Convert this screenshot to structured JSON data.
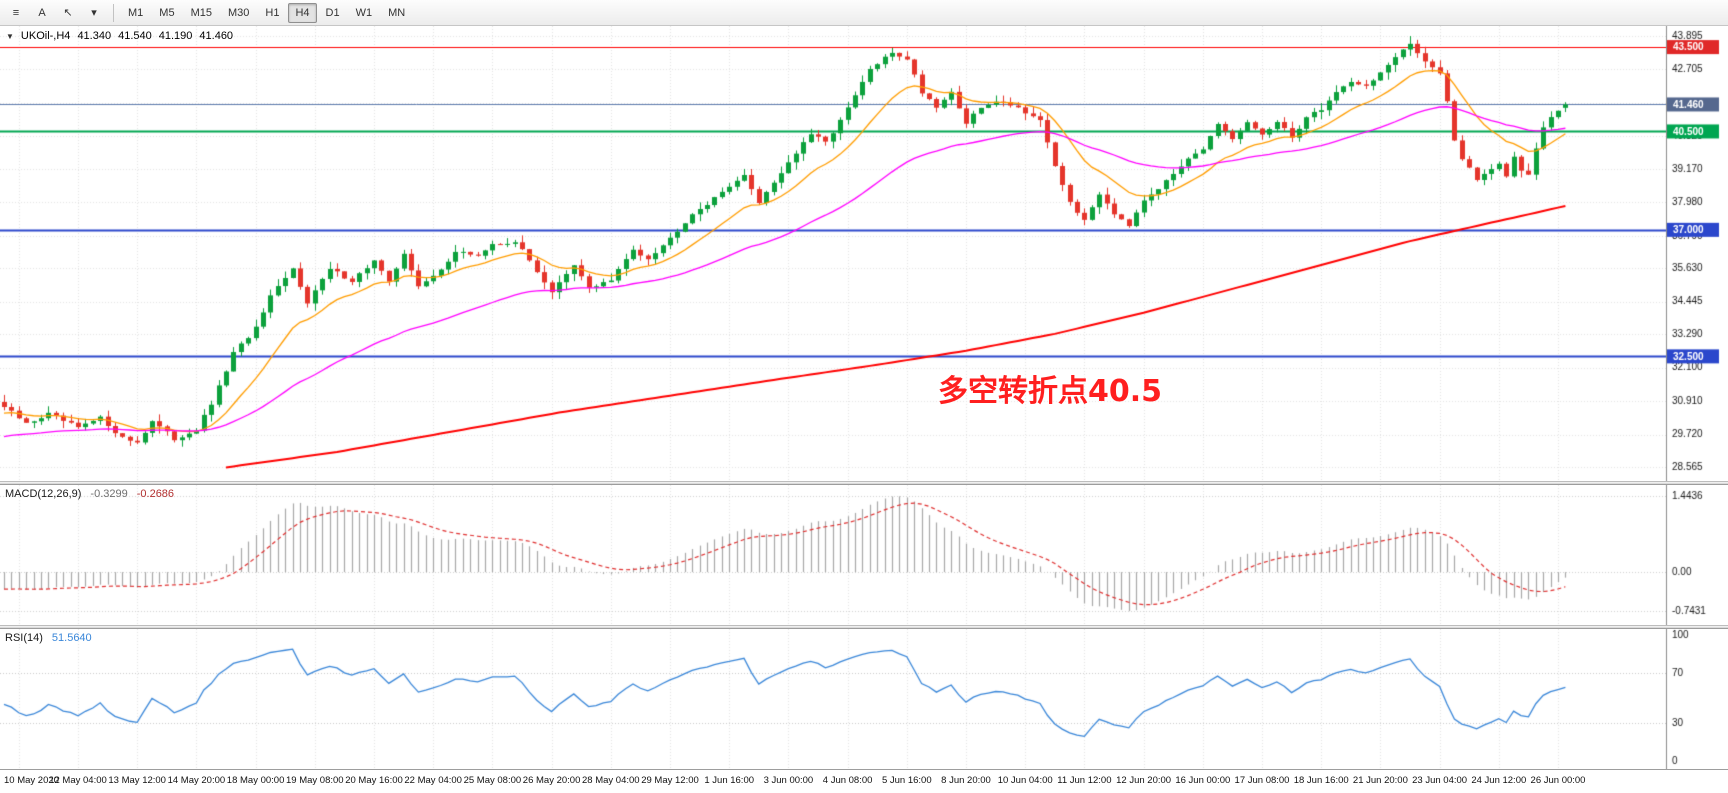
{
  "toolbar": {
    "tools": [
      {
        "name": "charts-menu",
        "glyph": "≡"
      },
      {
        "name": "text-label",
        "glyph": "A"
      },
      {
        "name": "cursor",
        "glyph": "↖"
      },
      {
        "name": "objects-dropdown",
        "glyph": "▾"
      }
    ],
    "timeframes": [
      "M1",
      "M5",
      "M15",
      "M30",
      "H1",
      "H4",
      "D1",
      "W1",
      "MN"
    ],
    "active_timeframe": "H4"
  },
  "symbol_info": {
    "collapse_icon": "▼",
    "symbol": "UKOil-,H4",
    "open": "41.340",
    "high": "41.540",
    "low": "41.190",
    "close": "41.460"
  },
  "annotation": {
    "text": "多空转折点40.5",
    "color": "#ff1f1f"
  },
  "indicators": {
    "macd": {
      "label": "MACD(12,26,9)",
      "value_main": "-0.3299",
      "value_signal": "-0.2686",
      "scale": [
        {
          "v": 1.4436,
          "label": "1.4436"
        },
        {
          "v": 0,
          "label": "0.00"
        },
        {
          "v": -0.7431,
          "label": "-0.7431"
        }
      ]
    },
    "rsi": {
      "label": "RSI(14)",
      "value": "51.5640",
      "scale": [
        {
          "v": 100,
          "label": "100"
        },
        {
          "v": 70,
          "label": "70"
        },
        {
          "v": 30,
          "label": "30"
        },
        {
          "v": 0,
          "label": "0"
        }
      ],
      "levels": [
        70,
        30
      ]
    }
  },
  "chart_data": {
    "type": "candlestick",
    "symbol": "UKOil-",
    "timeframe": "H4",
    "last_ohlc": {
      "open": 41.34,
      "high": 41.54,
      "low": 41.19,
      "close": 41.46
    },
    "price_axis": {
      "min": 28.565,
      "max": 43.895,
      "ticks": [
        43.895,
        42.705,
        41.515,
        40.325,
        39.17,
        37.98,
        36.79,
        35.63,
        34.445,
        33.29,
        32.1,
        30.91,
        29.72,
        28.565
      ]
    },
    "hlines": [
      {
        "price": 43.5,
        "label": "43.500",
        "color": "#ff0000",
        "badge": "#e02828",
        "width": 1.2
      },
      {
        "price": 37.0,
        "label": "37.000",
        "color": "#2b47cc",
        "badge": "#2b47cc",
        "width": 2
      },
      {
        "price": 32.5,
        "label": "32.500",
        "color": "#2b47cc",
        "badge": "#2b47cc",
        "width": 2
      },
      {
        "price": 40.5,
        "label": "40.500",
        "color": "#00a651",
        "badge": "#00a651",
        "width": 2
      },
      {
        "price": 41.46,
        "label": "41.460",
        "color": "#5b79ad",
        "badge": "#55688e",
        "width": 1
      }
    ],
    "time_labels": [
      "10 May 2020",
      "12 May 04:00",
      "13 May 12:00",
      "14 May 20:00",
      "18 May 00:00",
      "19 May 08:00",
      "20 May 16:00",
      "22 May 04:00",
      "25 May 08:00",
      "26 May 20:00",
      "28 May 04:00",
      "29 May 12:00",
      "1 Jun 16:00",
      "3 Jun 00:00",
      "4 Jun 08:00",
      "5 Jun 16:00",
      "8 Jun 20:00",
      "10 Jun 04:00",
      "11 Jun 12:00",
      "12 Jun 20:00",
      "16 Jun 00:00",
      "17 Jun 08:00",
      "18 Jun 16:00",
      "21 Jun 20:00",
      "23 Jun 04:00",
      "24 Jun 12:00",
      "26 Jun 00:00"
    ],
    "n_candles": 212,
    "candle_spacing": 7.4,
    "first_label_index": 2,
    "label_step": 8,
    "close_waypoints": [
      [
        0,
        30.7
      ],
      [
        3,
        30.1
      ],
      [
        6,
        30.45
      ],
      [
        10,
        29.95
      ],
      [
        13,
        30.3
      ],
      [
        16,
        29.6
      ],
      [
        18,
        29.45
      ],
      [
        20,
        30.2
      ],
      [
        23,
        29.55
      ],
      [
        26,
        29.9
      ],
      [
        28,
        30.8
      ],
      [
        31,
        32.6
      ],
      [
        34,
        33.5
      ],
      [
        36,
        34.6
      ],
      [
        39,
        35.6
      ],
      [
        41,
        34.45
      ],
      [
        44,
        35.6
      ],
      [
        47,
        35.2
      ],
      [
        50,
        35.9
      ],
      [
        52,
        35.1
      ],
      [
        54,
        36.2
      ],
      [
        56,
        34.95
      ],
      [
        58,
        35.35
      ],
      [
        61,
        36.2
      ],
      [
        64,
        36.1
      ],
      [
        66,
        36.45
      ],
      [
        69,
        36.6
      ],
      [
        71,
        35.9
      ],
      [
        74,
        34.8
      ],
      [
        77,
        35.7
      ],
      [
        79,
        34.95
      ],
      [
        82,
        35.2
      ],
      [
        85,
        36.3
      ],
      [
        87,
        36.0
      ],
      [
        90,
        36.7
      ],
      [
        93,
        37.6
      ],
      [
        96,
        38.1
      ],
      [
        98,
        38.6
      ],
      [
        100,
        38.9
      ],
      [
        102,
        38.0
      ],
      [
        106,
        39.4
      ],
      [
        109,
        40.4
      ],
      [
        111,
        40.1
      ],
      [
        114,
        41.3
      ],
      [
        117,
        42.7
      ],
      [
        120,
        43.3
      ],
      [
        122,
        43.1
      ],
      [
        124,
        41.9
      ],
      [
        126,
        41.4
      ],
      [
        128,
        41.9
      ],
      [
        130,
        40.8
      ],
      [
        132,
        41.35
      ],
      [
        135,
        41.6
      ],
      [
        138,
        41.2
      ],
      [
        140,
        40.9
      ],
      [
        142,
        39.2
      ],
      [
        144,
        38.0
      ],
      [
        146,
        37.3
      ],
      [
        148,
        38.3
      ],
      [
        150,
        37.6
      ],
      [
        152,
        37.2
      ],
      [
        154,
        38.1
      ],
      [
        157,
        38.7
      ],
      [
        160,
        39.6
      ],
      [
        162,
        39.9
      ],
      [
        164,
        40.7
      ],
      [
        166,
        40.2
      ],
      [
        168,
        40.8
      ],
      [
        170,
        40.4
      ],
      [
        172,
        40.8
      ],
      [
        174,
        40.3
      ],
      [
        176,
        41.0
      ],
      [
        178,
        41.3
      ],
      [
        180,
        41.9
      ],
      [
        182,
        42.3
      ],
      [
        184,
        42.1
      ],
      [
        186,
        42.6
      ],
      [
        188,
        43.1
      ],
      [
        190,
        43.6
      ],
      [
        191,
        43.3
      ],
      [
        193,
        42.8
      ],
      [
        194,
        42.6
      ],
      [
        195,
        41.6
      ],
      [
        196,
        40.2
      ],
      [
        197,
        39.5
      ],
      [
        199,
        38.8
      ],
      [
        201,
        39.2
      ],
      [
        202,
        39.4
      ],
      [
        203,
        38.9
      ],
      [
        204,
        39.6
      ],
      [
        205,
        39.1
      ],
      [
        206,
        39.0
      ],
      [
        207,
        39.9
      ],
      [
        208,
        40.6
      ],
      [
        209,
        41.0
      ],
      [
        210,
        41.2
      ],
      [
        211,
        41.46
      ]
    ],
    "peak": {
      "index": 190,
      "high": 43.895
    },
    "low_clamp": 29.1,
    "ma": {
      "fast": {
        "period": 13,
        "color": "#ff9d00"
      },
      "medium": {
        "period": 45,
        "color": "#ff00ff"
      },
      "slow": {
        "color": "#ff0000",
        "width": 2,
        "waypoints": [
          [
            30,
            28.55
          ],
          [
            45,
            29.1
          ],
          [
            60,
            29.8
          ],
          [
            75,
            30.5
          ],
          [
            90,
            31.1
          ],
          [
            105,
            31.7
          ],
          [
            118,
            32.2
          ],
          [
            130,
            32.7
          ],
          [
            142,
            33.3
          ],
          [
            154,
            34.05
          ],
          [
            166,
            34.9
          ],
          [
            178,
            35.75
          ],
          [
            190,
            36.6
          ],
          [
            200,
            37.2
          ],
          [
            206,
            37.55
          ],
          [
            211,
            37.85
          ]
        ]
      }
    },
    "macd_settings": {
      "fast": 12,
      "slow": 26,
      "signal_period": 9,
      "pos_max": 1.4436,
      "neg_min": -0.7431,
      "hist_color": "#a8a8a8",
      "signal_color": "#e03030",
      "seed_offset": 0.6
    },
    "rsi_settings": {
      "period": 14,
      "color": "#3a87d9"
    },
    "colors": {
      "up": "#0ca13c",
      "down": "#e5352b",
      "grid": "#e4e4e4",
      "axis_line": "#8c8c8c",
      "axis_text": "#1a1a1a",
      "background": "#ffffff"
    }
  }
}
